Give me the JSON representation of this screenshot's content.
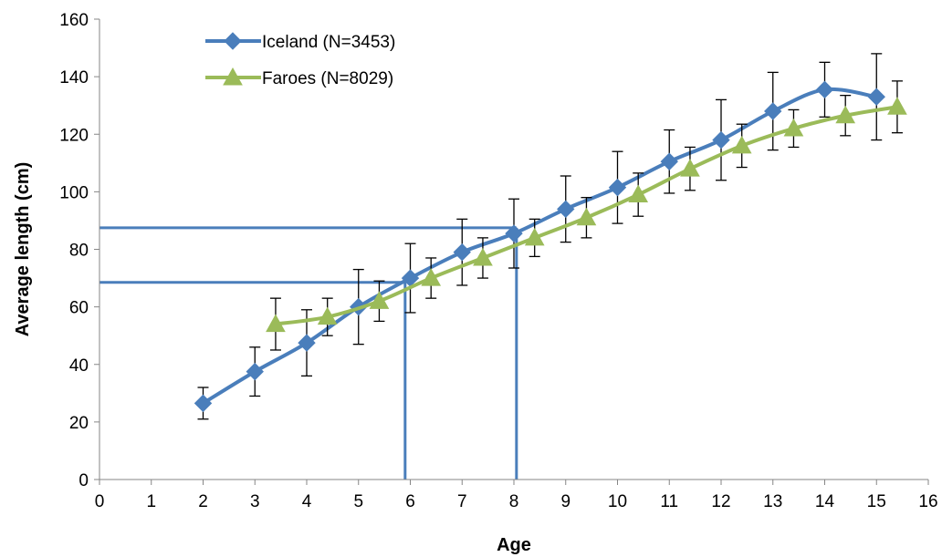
{
  "chart_data": {
    "type": "line",
    "title": "",
    "xlabel": "Age",
    "ylabel": "Average length (cm)",
    "xlim": [
      0,
      16
    ],
    "ylim": [
      0,
      160
    ],
    "xticks": [
      0,
      1,
      2,
      3,
      4,
      5,
      6,
      7,
      8,
      9,
      10,
      11,
      12,
      13,
      14,
      15,
      16
    ],
    "yticks": [
      0,
      20,
      40,
      60,
      80,
      100,
      120,
      140,
      160
    ],
    "grid": false,
    "legend_position": "top-left",
    "series": [
      {
        "name": "Iceland (N=3453)",
        "marker": "diamond",
        "color": "#4a7ebb",
        "x": [
          2,
          3,
          4,
          5,
          6,
          7,
          8,
          9,
          10,
          11,
          12,
          13,
          14,
          15
        ],
        "y": [
          26.5,
          37.5,
          47.5,
          60,
          70,
          79,
          85.5,
          94,
          101.5,
          110.5,
          118,
          128,
          135.5,
          133
        ],
        "err": [
          5.5,
          8.5,
          11.5,
          13,
          12,
          11.5,
          12,
          11.5,
          12.5,
          11,
          14,
          13.5,
          9.5,
          15
        ]
      },
      {
        "name": "Faroes (N=8029)",
        "marker": "triangle",
        "color": "#9bbb59",
        "x": [
          3.4,
          4.4,
          5.4,
          6.4,
          7.4,
          8.4,
          9.4,
          10.4,
          11.4,
          12.4,
          13.4,
          14.4,
          15.4
        ],
        "y": [
          54,
          56.5,
          62,
          70,
          77,
          84,
          91,
          99,
          108,
          116,
          122,
          126.5,
          129.5
        ],
        "err": [
          9,
          6.5,
          7,
          7,
          7,
          6.5,
          7,
          7.5,
          7.5,
          7.5,
          6.5,
          7,
          9
        ]
      }
    ],
    "reference_lines": [
      {
        "age": 5.9,
        "length": 68.5,
        "color": "#4a7ebb"
      },
      {
        "age": 8.05,
        "length": 87.5,
        "color": "#4a7ebb"
      }
    ]
  }
}
